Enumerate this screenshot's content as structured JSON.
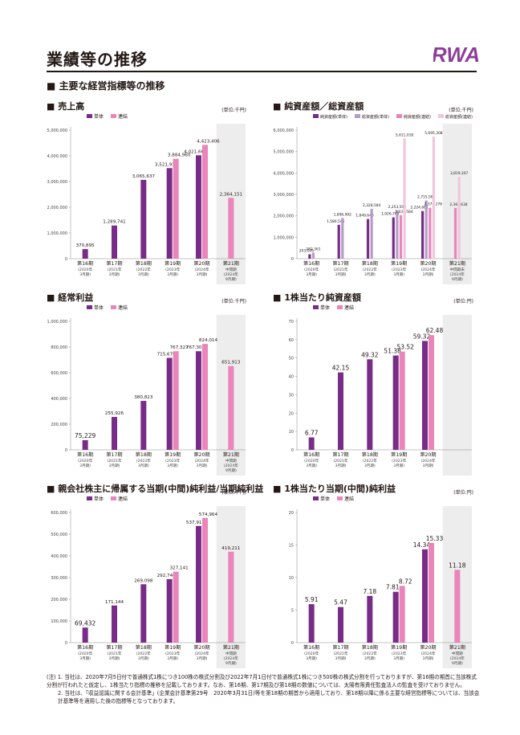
{
  "page_title": "業績等の推移",
  "logo_text": "RWA",
  "section_heading": "主要な経営指標等の推移",
  "colors": {
    "standalone": "#772C87",
    "consolidated": "#E985B9",
    "total_standalone": "#B59DC8",
    "total_consolidated": "#F3C6DD",
    "shade": "#EDEDED"
  },
  "notes": [
    "(注) 1. 当社は、2020年7月5日付で普通株式1株につき100株の株式分割及び2022年7月1日付で普通株式1株につき500株の株式分割を行っておりますが、第16期の期首に当該株式分割が行われたと仮定し、1株当たり指標の推移を記載しております。なお、第16期、第17期及び第18期の数値については、太陽有限責任監査法人の監査を受けておりません。",
    "2. 当社は、「収益認識に関する会計基準」(企業会計基準第29号　2020年3月31日)等を第18期の期首から適用しており、第18期以降に係る主要な経営指標等については、当該会計基準等を適用した後の指標等となっております。"
  ],
  "chart_data": [
    {
      "id": "sales",
      "type": "bar",
      "title": "売上高",
      "unit": "(単位:千円)",
      "ylim": [
        0,
        5000000
      ],
      "yticks": [
        "0",
        "1,000,000",
        "2,000,000",
        "3,000,000",
        "4,000,000",
        "5,000,000"
      ],
      "legend": [
        "単体",
        "連結"
      ],
      "categories": [
        {
          "label": "第16期",
          "sub": [
            "(2020年",
            "3月期)"
          ]
        },
        {
          "label": "第17期",
          "sub": [
            "(2021年",
            "3月期)"
          ]
        },
        {
          "label": "第18期",
          "sub": [
            "(2022年",
            "3月期)"
          ]
        },
        {
          "label": "第19期",
          "sub": [
            "(2023年",
            "3月期)"
          ]
        },
        {
          "label": "第20期",
          "sub": [
            "(2024年",
            "3月期)"
          ]
        },
        {
          "label": "第21期",
          "sub": [
            "中間期",
            "(2024年",
            "9月期)"
          ]
        }
      ],
      "shade_last": true,
      "series": [
        {
          "name": "単体",
          "values": [
            370895,
            1289741,
            3065637,
            3521913,
            4021667,
            null
          ],
          "labels": [
            "370,895",
            "1,289,741",
            "3,065,637",
            "3,521,913",
            "4,021,667",
            ""
          ]
        },
        {
          "name": "連結",
          "values": [
            null,
            null,
            null,
            3884960,
            4423406,
            2364151
          ],
          "labels": [
            "",
            "",
            "",
            "3,884,960",
            "4,423,406",
            "2,364,151"
          ]
        }
      ]
    },
    {
      "id": "assets",
      "type": "bar",
      "title": "純資産額／総資産額",
      "unit": "(単位:千円)",
      "ylim": [
        0,
        6000000
      ],
      "yticks": [
        "0",
        "1,000,000",
        "2,000,000",
        "3,000,000",
        "4,000,000",
        "5,000,000",
        "6,000,000"
      ],
      "legend": [
        "純資産額(単体)",
        "総資産額(単体)",
        "純資産額(連結)",
        "総資産額(連結)"
      ],
      "categories": [
        {
          "label": "第16期",
          "sub": [
            "(2020年",
            "3月期)"
          ]
        },
        {
          "label": "第17期",
          "sub": [
            "(2021年",
            "3月期)"
          ]
        },
        {
          "label": "第18期",
          "sub": [
            "(2022年",
            "3月期)"
          ]
        },
        {
          "label": "第19期",
          "sub": [
            "(2023年",
            "3月期)"
          ]
        },
        {
          "label": "第20期",
          "sub": [
            "(2024年",
            "3月期)"
          ]
        },
        {
          "label": "第21期",
          "sub": [
            "中間期末",
            "(2024年",
            "9月期)"
          ]
        }
      ],
      "shade_last": true,
      "series": [
        {
          "name": "純資産額(単体)",
          "values": [
            203105,
            1580545,
            1849646,
            1926763,
            2224681,
            null
          ],
          "labels": [
            "203,105",
            "1,580,545",
            "1,849,646",
            "1,926,763",
            "2,224,681",
            ""
          ]
        },
        {
          "name": "総資産額(単体)",
          "values": [
            282361,
            1896992,
            2328584,
            2253590,
            2715566,
            null
          ],
          "labels": [
            "282,361",
            "1,896,992",
            "2,328,584",
            "2,253,590",
            "2,715,566",
            ""
          ]
        },
        {
          "name": "純資産額(連結)",
          "values": [
            null,
            null,
            null,
            2032584,
            2372278,
            2366634
          ],
          "labels": [
            "",
            "",
            "",
            "2,032,584",
            "2,372,278",
            "2,366,634"
          ]
        },
        {
          "name": "総資産額(連結)",
          "values": [
            null,
            null,
            null,
            5611018,
            5695308,
            3819307
          ],
          "labels": [
            "",
            "",
            "",
            "5,611,018",
            "5,695,308",
            "3,819,307"
          ]
        }
      ]
    },
    {
      "id": "ordinary",
      "type": "bar",
      "title": "経常利益",
      "unit": "(単位:千円)",
      "ylim": [
        0,
        1000000
      ],
      "yticks": [
        "0",
        "200,000",
        "400,000",
        "600,000",
        "800,000",
        "1,000,000"
      ],
      "legend": [
        "単体",
        "連結"
      ],
      "categories": [
        {
          "label": "第16期",
          "sub": [
            "(2020年",
            "3月期)"
          ]
        },
        {
          "label": "第17期",
          "sub": [
            "(2021年",
            "3月期)"
          ]
        },
        {
          "label": "第18期",
          "sub": [
            "(2022年",
            "3月期)"
          ]
        },
        {
          "label": "第19期",
          "sub": [
            "(2023年",
            "3月期)"
          ]
        },
        {
          "label": "第20期",
          "sub": [
            "(2024年",
            "3月期)"
          ]
        },
        {
          "label": "第21期",
          "sub": [
            "中間期",
            "(2024年",
            "9月期)"
          ]
        }
      ],
      "shade_last": true,
      "series": [
        {
          "name": "単体",
          "values": [
            75229,
            255926,
            380823,
            715670,
            767306,
            null
          ],
          "labels": [
            "75,229",
            "255,926",
            "380,823",
            "715,670",
            "767,306",
            ""
          ]
        },
        {
          "name": "連結",
          "values": [
            null,
            null,
            null,
            767327,
            824014,
            651913
          ],
          "labels": [
            "",
            "",
            "",
            "767,327",
            "824,014",
            "651,913"
          ]
        }
      ]
    },
    {
      "id": "bps",
      "type": "bar",
      "title": "1株当たり純資産額",
      "unit": "(単位:円)",
      "ylim": [
        0,
        70
      ],
      "yticks": [
        "0",
        "10",
        "20",
        "30",
        "40",
        "50",
        "60",
        "70"
      ],
      "legend": [
        "単体",
        "連結"
      ],
      "categories": [
        {
          "label": "第16期",
          "sub": [
            "(2020年",
            "3月期)"
          ]
        },
        {
          "label": "第17期",
          "sub": [
            "(2021年",
            "3月期)"
          ]
        },
        {
          "label": "第18期",
          "sub": [
            "(2022年",
            "3月期)"
          ]
        },
        {
          "label": "第19期",
          "sub": [
            "(2023年",
            "3月期)"
          ]
        },
        {
          "label": "第20期",
          "sub": [
            "(2024年",
            "3月期)"
          ]
        },
        {
          "label": "",
          "sub": []
        }
      ],
      "shade_last": true,
      "series": [
        {
          "name": "単体",
          "values": [
            6.77,
            42.15,
            49.32,
            51.38,
            59.32,
            null
          ],
          "labels": [
            "6.77",
            "42.15",
            "49.32",
            "51.38",
            "59.32",
            ""
          ]
        },
        {
          "name": "連結",
          "values": [
            null,
            null,
            null,
            53.52,
            62.48,
            null
          ],
          "labels": [
            "",
            "",
            "",
            "53.52",
            "62.48",
            ""
          ]
        }
      ]
    },
    {
      "id": "netincome",
      "type": "bar",
      "title": "親会社株主に帰属する当期(中間)純利益/当期純利益",
      "unit": "(単位:千円)",
      "ylim": [
        0,
        600000
      ],
      "yticks": [
        "0",
        "100,000",
        "200,000",
        "300,000",
        "400,000",
        "500,000",
        "600,000"
      ],
      "legend": [
        "単体",
        "連結"
      ],
      "categories": [
        {
          "label": "第16期",
          "sub": [
            "(2020年",
            "3月期)"
          ]
        },
        {
          "label": "第17期",
          "sub": [
            "(2021年",
            "3月期)"
          ]
        },
        {
          "label": "第18期",
          "sub": [
            "(2022年",
            "3月期)"
          ]
        },
        {
          "label": "第19期",
          "sub": [
            "(2023年",
            "3月期)"
          ]
        },
        {
          "label": "第20期",
          "sub": [
            "(2024年",
            "3月期)"
          ]
        },
        {
          "label": "第21期",
          "sub": [
            "中間期",
            "(2024年",
            "9月期)"
          ]
        }
      ],
      "shade_last": true,
      "series": [
        {
          "name": "単体",
          "values": [
            69432,
            171144,
            269098,
            292740,
            537918,
            null
          ],
          "labels": [
            "69,432",
            "171,144",
            "269,098",
            "292,740",
            "537,918",
            ""
          ]
        },
        {
          "name": "連結",
          "values": [
            null,
            null,
            null,
            327141,
            574964,
            419211
          ],
          "labels": [
            "",
            "",
            "",
            "327,141",
            "574,964",
            "419,211"
          ]
        }
      ]
    },
    {
      "id": "eps",
      "type": "bar",
      "title": "1株当たり当期(中間)純利益",
      "unit": "(単位:円)",
      "ylim": [
        0,
        20
      ],
      "yticks": [
        "0",
        "5",
        "10",
        "15",
        "20"
      ],
      "legend": [
        "単体",
        "連結"
      ],
      "categories": [
        {
          "label": "第16期",
          "sub": [
            "(2020年",
            "3月期)"
          ]
        },
        {
          "label": "第17期",
          "sub": [
            "(2021年",
            "3月期)"
          ]
        },
        {
          "label": "第18期",
          "sub": [
            "(2022年",
            "3月期)"
          ]
        },
        {
          "label": "第19期",
          "sub": [
            "(2023年",
            "3月期)"
          ]
        },
        {
          "label": "第20期",
          "sub": [
            "(2024年",
            "3月期)"
          ]
        },
        {
          "label": "第21期",
          "sub": [
            "中間期",
            "(2024年",
            "9月期)"
          ]
        }
      ],
      "shade_last": true,
      "series": [
        {
          "name": "単体",
          "values": [
            5.91,
            5.47,
            7.18,
            7.81,
            14.34,
            null
          ],
          "labels": [
            "5.91",
            "5.47",
            "7.18",
            "7.81",
            "14.34",
            ""
          ]
        },
        {
          "name": "連結",
          "values": [
            null,
            null,
            null,
            8.72,
            15.33,
            11.18
          ],
          "labels": [
            "",
            "",
            "",
            "8.72",
            "15.33",
            "11.18"
          ]
        }
      ]
    }
  ]
}
